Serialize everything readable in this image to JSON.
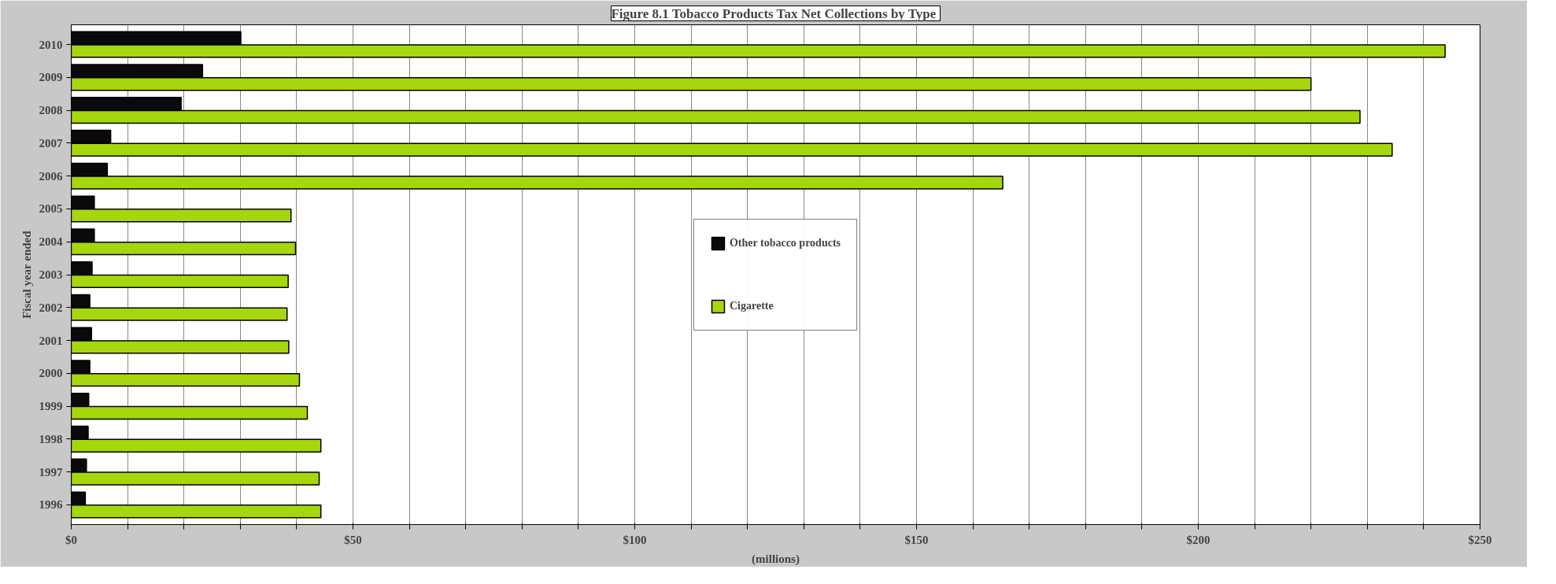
{
  "chart_data": {
    "type": "bar",
    "orientation": "horizontal",
    "title": "Figure 8.1  Tobacco Products Tax Net Collections by Type",
    "xlabel": "(millions)",
    "ylabel": "Fiscal year ended",
    "categories": [
      "2010",
      "2009",
      "2008",
      "2007",
      "2006",
      "2005",
      "2004",
      "2003",
      "2002",
      "2001",
      "2000",
      "1999",
      "1998",
      "1997",
      "1996"
    ],
    "series": [
      {
        "name": "Other tobacco products",
        "color": "#0a0a0a",
        "values": [
          30.1,
          23.3,
          19.5,
          7.0,
          6.4,
          4.1,
          4.1,
          3.7,
          3.3,
          3.6,
          3.3,
          3.1,
          3.0,
          2.7,
          2.5
        ]
      },
      {
        "name": "Cigarette",
        "color": "#a6d60c",
        "values": [
          243.8,
          220.0,
          228.7,
          234.4,
          165.3,
          39.0,
          39.8,
          38.5,
          38.3,
          38.6,
          40.5,
          41.9,
          44.3,
          44.0,
          44.3
        ]
      }
    ],
    "xlim": [
      0,
      250
    ],
    "xticks": [
      {
        "value": 0,
        "label": "$0"
      },
      {
        "value": 10,
        "label": null
      },
      {
        "value": 20,
        "label": null
      },
      {
        "value": 30,
        "label": null
      },
      {
        "value": 40,
        "label": null
      },
      {
        "value": 50,
        "label": "$50"
      },
      {
        "value": 60,
        "label": null
      },
      {
        "value": 70,
        "label": null
      },
      {
        "value": 80,
        "label": null
      },
      {
        "value": 90,
        "label": null
      },
      {
        "value": 100,
        "label": "$100"
      },
      {
        "value": 110,
        "label": null
      },
      {
        "value": 120,
        "label": null
      },
      {
        "value": 130,
        "label": null
      },
      {
        "value": 140,
        "label": null
      },
      {
        "value": 150,
        "label": "$150"
      },
      {
        "value": 160,
        "label": null
      },
      {
        "value": 170,
        "label": null
      },
      {
        "value": 180,
        "label": null
      },
      {
        "value": 190,
        "label": null
      },
      {
        "value": 200,
        "label": "$200"
      },
      {
        "value": 210,
        "label": null
      },
      {
        "value": 220,
        "label": null
      },
      {
        "value": 230,
        "label": null
      },
      {
        "value": 240,
        "label": null
      },
      {
        "value": 250,
        "label": "$250"
      }
    ],
    "grid": "x",
    "legend": "center"
  }
}
